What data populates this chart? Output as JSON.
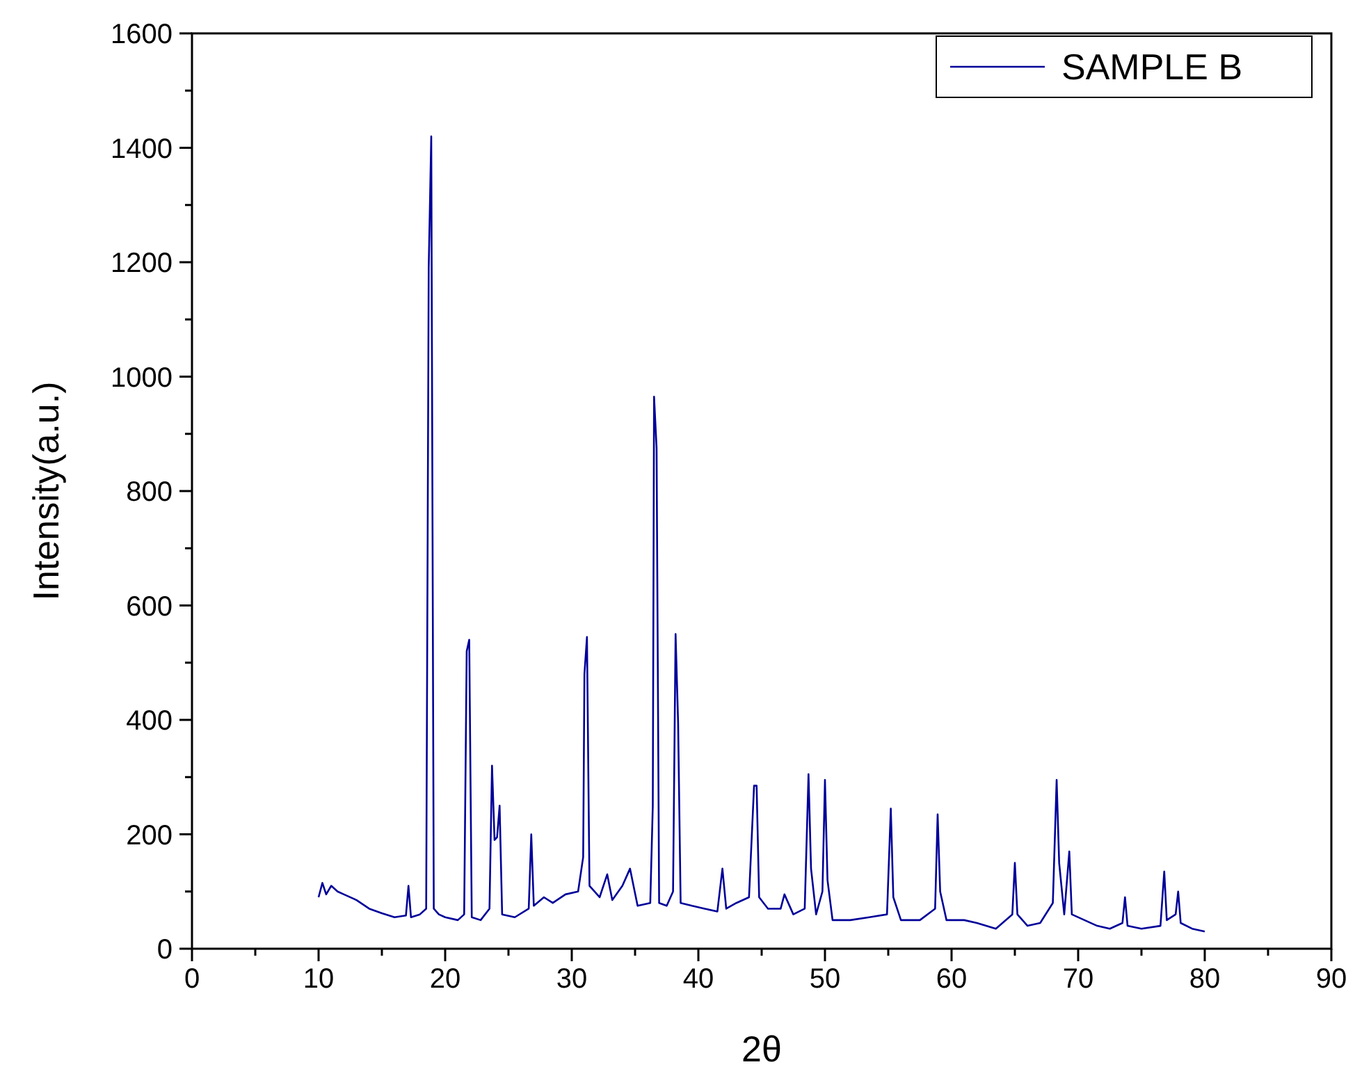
{
  "chart_data": {
    "type": "line",
    "xlabel": "2θ",
    "ylabel": "Intensity(a.u.)",
    "legend": "top right",
    "grid": false,
    "marker": "none",
    "line_style": "solid",
    "xlim": [
      0,
      90
    ],
    "xticks": [
      0,
      {
        "value": 5,
        "label": null
      },
      10,
      {
        "value": 15,
        "label": null
      },
      20,
      {
        "value": 25,
        "label": null
      },
      30,
      {
        "value": 35,
        "label": null
      },
      40,
      {
        "value": 45,
        "label": null
      },
      50,
      {
        "value": 55,
        "label": null
      },
      60,
      {
        "value": 65,
        "label": null
      },
      70,
      {
        "value": 75,
        "label": null
      },
      80,
      {
        "value": 85,
        "label": null
      },
      90
    ],
    "ylim": [
      0,
      1600
    ],
    "yticks": [
      0,
      {
        "value": 100,
        "label": null
      },
      200,
      {
        "value": 300,
        "label": null
      },
      400,
      {
        "value": 500,
        "label": null
      },
      600,
      {
        "value": 700,
        "label": null
      },
      800,
      {
        "value": 900,
        "label": null
      },
      1000,
      {
        "value": 1100,
        "label": null
      },
      1200,
      {
        "value": 1300,
        "label": null
      },
      1400,
      {
        "value": 1500,
        "label": null
      },
      1600
    ],
    "series": [
      {
        "name": "SAMPLE B",
        "color": "#000099",
        "x": [
          10.0,
          10.3,
          10.6,
          11,
          11.5,
          12,
          13,
          14,
          15,
          16,
          16.9,
          17.1,
          17.3,
          18,
          18.5,
          18.7,
          18.9,
          19.1,
          19.5,
          20,
          21,
          21.5,
          21.7,
          21.9,
          22.1,
          22.8,
          23.5,
          23.7,
          23.9,
          24.1,
          24.3,
          24.5,
          25.5,
          26.6,
          26.8,
          27.0,
          27.8,
          28.5,
          29.5,
          30.5,
          30.9,
          31.0,
          31.2,
          31.4,
          32.2,
          32.8,
          33.2,
          34,
          34.6,
          35.2,
          36.2,
          36.4,
          36.5,
          36.7,
          36.9,
          37.5,
          38.0,
          38.2,
          38.4,
          38.6,
          39.5,
          40.5,
          41.5,
          41.9,
          42.2,
          43,
          44.0,
          44.4,
          44.6,
          44.8,
          45.5,
          46.5,
          46.8,
          47.5,
          48.4,
          48.7,
          48.9,
          49.3,
          49.8,
          50.0,
          50.2,
          50.6,
          52,
          53.5,
          54.9,
          55.2,
          55.4,
          56,
          57.5,
          58.7,
          58.9,
          59.1,
          59.6,
          61,
          62,
          63.5,
          64.8,
          65.0,
          65.2,
          66,
          67,
          68.0,
          68.3,
          68.5,
          68.9,
          69.3,
          69.5,
          70.5,
          71.5,
          72.5,
          73.5,
          73.7,
          73.9,
          75,
          76.5,
          76.8,
          77.0,
          77.7,
          77.9,
          78.1,
          79,
          80
        ],
        "values": [
          90,
          115,
          95,
          110,
          100,
          95,
          85,
          70,
          62,
          55,
          58,
          110,
          55,
          60,
          70,
          1190,
          1420,
          70,
          60,
          55,
          50,
          60,
          520,
          540,
          55,
          50,
          70,
          320,
          190,
          195,
          250,
          60,
          55,
          70,
          200,
          75,
          90,
          80,
          95,
          100,
          160,
          480,
          545,
          110,
          90,
          130,
          85,
          110,
          140,
          75,
          80,
          250,
          965,
          875,
          80,
          75,
          100,
          550,
          395,
          80,
          75,
          70,
          65,
          140,
          70,
          80,
          90,
          285,
          285,
          90,
          70,
          70,
          95,
          60,
          70,
          305,
          140,
          60,
          100,
          295,
          120,
          50,
          50,
          55,
          60,
          245,
          90,
          50,
          50,
          70,
          235,
          100,
          50,
          50,
          45,
          35,
          60,
          150,
          60,
          40,
          45,
          80,
          295,
          150,
          60,
          170,
          60,
          50,
          40,
          35,
          45,
          90,
          40,
          35,
          40,
          135,
          50,
          60,
          100,
          45,
          35,
          30
        ]
      }
    ]
  }
}
